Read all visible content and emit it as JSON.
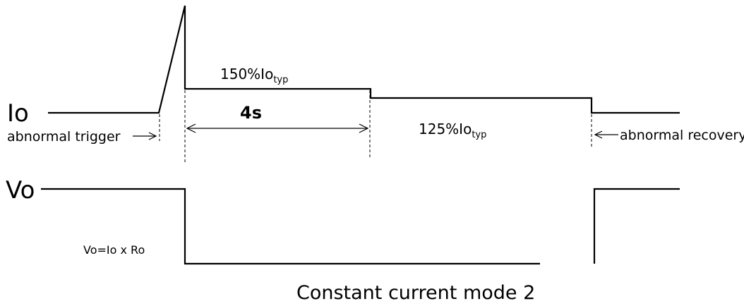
{
  "signals": {
    "io_label": "Io",
    "vo_label": "Vo"
  },
  "annotations": {
    "peak_level_main": "150%Io",
    "peak_level_sub": "typ",
    "duration": "4s",
    "sustained_level_main": "125%Io",
    "sustained_level_sub": "typ",
    "trigger": "abnormal trigger",
    "recovery": "abnormal recovery",
    "vo_formula": "Vo=Io x Ro"
  },
  "caption": "Constant current mode 2"
}
